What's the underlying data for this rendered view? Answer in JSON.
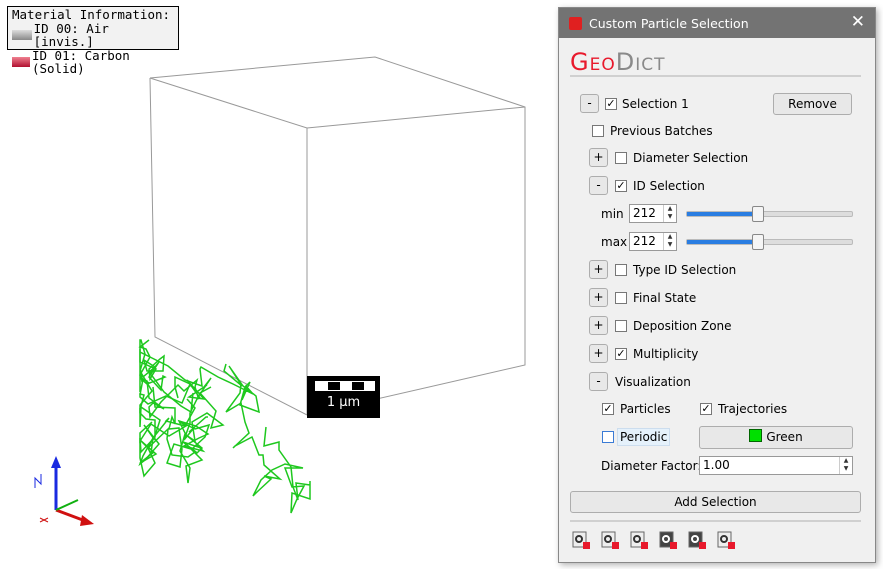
{
  "legend": {
    "title": "Material Information:",
    "items": [
      {
        "label": "ID 00: Air [invis.]",
        "color": "#909090"
      },
      {
        "label": "ID 01: Carbon (Solid)",
        "color": "#e0405a"
      }
    ]
  },
  "scale_bar": {
    "label": "1 µm"
  },
  "panel": {
    "title": "Custom Particle Selection",
    "close": "✕",
    "logo": {
      "geo": "Geo",
      "dict": "Dict"
    },
    "selection": {
      "toggle": "-",
      "label": "Selection 1",
      "checked": true,
      "remove": "Remove"
    },
    "items": [
      {
        "label": "Previous Batches",
        "checked": false
      },
      {
        "toggle": "+",
        "label": "Diameter Selection",
        "checked": false
      },
      {
        "toggle": "-",
        "label": "ID Selection",
        "checked": true
      },
      {
        "toggle": "+",
        "label": "Type ID Selection",
        "checked": false
      },
      {
        "toggle": "+",
        "label": "Final State",
        "checked": false
      },
      {
        "toggle": "+",
        "label": "Deposition Zone",
        "checked": false
      },
      {
        "toggle": "+",
        "label": "Multiplicity",
        "checked": true
      },
      {
        "toggle": "-",
        "label": "Visualization"
      }
    ],
    "id_min": {
      "label": "min",
      "value": "212",
      "slider_fraction": 0.43
    },
    "id_max": {
      "label": "max",
      "value": "212",
      "slider_fraction": 0.43
    },
    "visualization": {
      "particles": {
        "label": "Particles",
        "checked": true
      },
      "trajectories": {
        "label": "Trajectories",
        "checked": true
      },
      "periodic": {
        "label": "Periodic",
        "checked": false
      },
      "color_button": "Green",
      "color": "#00e000",
      "diameter_factor_label": "Diameter Factor:",
      "diameter_factor": "1.00"
    },
    "add_selection": "Add Selection",
    "toolbar_icons": [
      "load-settings-icon",
      "save-settings-icon",
      "reset-icon",
      "save-dark-icon",
      "load-dark-icon",
      "open-external-icon"
    ]
  },
  "colors": {
    "accent": "#e8192c",
    "trajectory": "#1ec81e"
  }
}
